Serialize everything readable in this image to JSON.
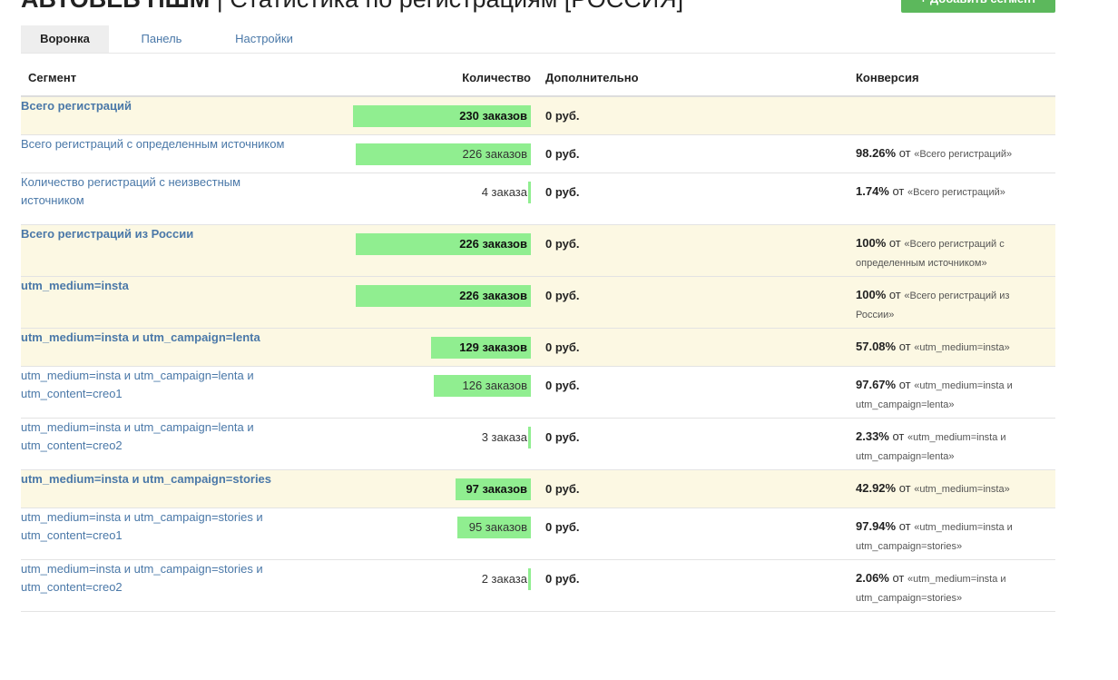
{
  "header": {
    "title_bold": "АВТОВЕБ ПШМ",
    "title_rest": " | Статистика по регистрациям [РОССИЯ]",
    "add_button": "+ Добавить сегмент"
  },
  "tabs": [
    {
      "label": "Воронка",
      "active": true
    },
    {
      "label": "Панель",
      "active": false
    },
    {
      "label": "Настройки",
      "active": false
    }
  ],
  "columns": {
    "segment": "Сегмент",
    "quantity": "Количество",
    "extra": "Дополнительно",
    "conversion": "Конверсия"
  },
  "rows": [
    {
      "segment": "Всего регистраций",
      "highlight": true,
      "count": 230,
      "count_label": "230 заказов",
      "extra": "0 руб.",
      "pct": "",
      "ot": "",
      "ref": ""
    },
    {
      "segment": "Всего регистраций с определенным источником",
      "highlight": false,
      "count": 226,
      "count_label": "226 заказов",
      "extra": "0 руб.",
      "pct": "98.26%",
      "ot": " от ",
      "ref": "«Всего регистраций»"
    },
    {
      "segment": "Количество регистраций с неизвестным источником",
      "highlight": false,
      "count": 4,
      "count_label": "4 заказа",
      "extra": "0 руб.",
      "pct": "1.74%",
      "ot": " от ",
      "ref": "«Всего регистраций»"
    },
    {
      "segment": "Всего регистраций из России",
      "highlight": true,
      "count": 226,
      "count_label": "226 заказов",
      "extra": "0 руб.",
      "pct": "100%",
      "ot": " от ",
      "ref": "«Всего регистраций с определенным источником»"
    },
    {
      "segment": "utm_medium=insta",
      "highlight": true,
      "count": 226,
      "count_label": "226 заказов",
      "extra": "0 руб.",
      "pct": "100%",
      "ot": " от ",
      "ref": "«Всего регистраций из России»"
    },
    {
      "segment": "utm_medium=insta и utm_campaign=lenta",
      "highlight": true,
      "count": 129,
      "count_label": "129 заказов",
      "extra": "0 руб.",
      "pct": "57.08%",
      "ot": " от ",
      "ref": "«utm_medium=insta»"
    },
    {
      "segment": "utm_medium=insta и utm_campaign=lenta и utm_content=creo1",
      "highlight": false,
      "count": 126,
      "count_label": "126 заказов",
      "extra": "0 руб.",
      "pct": "97.67%",
      "ot": " от ",
      "ref": "«utm_medium=insta и utm_campaign=lenta»"
    },
    {
      "segment": "utm_medium=insta и utm_campaign=lenta и utm_content=creo2",
      "highlight": false,
      "count": 3,
      "count_label": "3 заказа",
      "extra": "0 руб.",
      "pct": "2.33%",
      "ot": " от ",
      "ref": "«utm_medium=insta и utm_campaign=lenta»"
    },
    {
      "segment": "utm_medium=insta и utm_campaign=stories",
      "highlight": true,
      "count": 97,
      "count_label": "97 заказов",
      "extra": "0 руб.",
      "pct": "42.92%",
      "ot": " от ",
      "ref": "«utm_medium=insta»"
    },
    {
      "segment": "utm_medium=insta и utm_campaign=stories и utm_content=creo1",
      "highlight": false,
      "count": 95,
      "count_label": "95 заказов",
      "extra": "0 руб.",
      "pct": "97.94%",
      "ot": " от ",
      "ref": "«utm_medium=insta и utm_campaign=stories»"
    },
    {
      "segment": "utm_medium=insta и utm_campaign=stories и utm_content=creo2",
      "highlight": false,
      "count": 2,
      "count_label": "2 заказа",
      "extra": "0 руб.",
      "pct": "2.06%",
      "ot": " от ",
      "ref": "«utm_medium=insta и utm_campaign=stories»"
    }
  ],
  "colors": {
    "bar": "#90ee90",
    "highlight_row": "#fcf8e3",
    "link": "#4a78a8",
    "add_button": "#5cb85c"
  }
}
